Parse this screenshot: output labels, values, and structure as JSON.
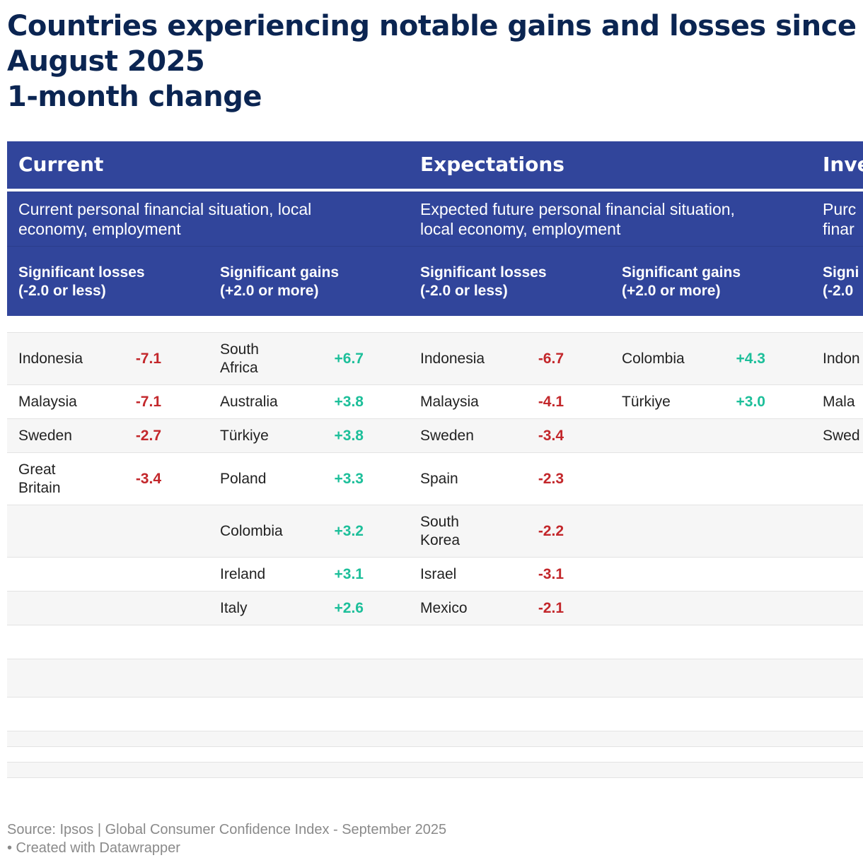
{
  "title_lines": [
    "Countries experiencing notable gains and losses since",
    "August 2025",
    "1-month change"
  ],
  "colors": {
    "header_bg": "#31459b",
    "negative": "#c3272b",
    "positive": "#1dbf9a",
    "title": "#0b2552"
  },
  "chart_data": {
    "type": "table",
    "title": "Countries experiencing notable gains and losses since August 2025 1-month change",
    "groups": [
      {
        "name": "Current",
        "description": "Current personal financial situation, local economy, employment"
      },
      {
        "name": "Expectations",
        "description": "Expected future personal financial situation, local economy, employment"
      },
      {
        "name": "Inve",
        "description": "Purc\nfinar"
      }
    ],
    "column_headers": [
      "Significant losses\n(-2.0 or less)",
      "Significant gains\n(+2.0 or more)",
      "Significant losses\n(-2.0 or less)",
      "Significant gains\n(+2.0 or more)",
      "Signi\n(-2.0"
    ],
    "columns": [
      {
        "group": "Current",
        "type": "losses",
        "entries": [
          {
            "country": "Indonesia",
            "value": "-7.1"
          },
          {
            "country": "Malaysia",
            "value": "-7.1"
          },
          {
            "country": "Sweden",
            "value": "-2.7"
          },
          {
            "country": "Great Britain",
            "value": "-3.4"
          }
        ]
      },
      {
        "group": "Current",
        "type": "gains",
        "entries": [
          {
            "country": "South Africa",
            "value": "+6.7"
          },
          {
            "country": "Australia",
            "value": "+3.8"
          },
          {
            "country": "Türkiye",
            "value": "+3.8"
          },
          {
            "country": "Poland",
            "value": "+3.3"
          },
          {
            "country": "Colombia",
            "value": "+3.2"
          },
          {
            "country": "Ireland",
            "value": "+3.1"
          },
          {
            "country": "Italy",
            "value": "+2.6"
          }
        ]
      },
      {
        "group": "Expectations",
        "type": "losses",
        "entries": [
          {
            "country": "Indonesia",
            "value": "-6.7"
          },
          {
            "country": "Malaysia",
            "value": "-4.1"
          },
          {
            "country": "Sweden",
            "value": "-3.4"
          },
          {
            "country": "Spain",
            "value": "-2.3"
          },
          {
            "country": "South Korea",
            "value": "-2.2"
          },
          {
            "country": "Israel",
            "value": "-3.1"
          },
          {
            "country": "Mexico",
            "value": "-2.1"
          }
        ]
      },
      {
        "group": "Expectations",
        "type": "gains",
        "entries": [
          {
            "country": "Colombia",
            "value": "+4.3"
          },
          {
            "country": "Türkiye",
            "value": "+3.0"
          }
        ]
      },
      {
        "group": "Inve",
        "type": "losses",
        "entries": [
          {
            "country": "Indon",
            "value": ""
          },
          {
            "country": "Mala",
            "value": ""
          },
          {
            "country": "Swed",
            "value": ""
          }
        ]
      }
    ]
  },
  "footer": {
    "source": "Source: Ipsos | Global Consumer Confidence Index - September 2025",
    "credit": "• Created with Datawrapper"
  }
}
